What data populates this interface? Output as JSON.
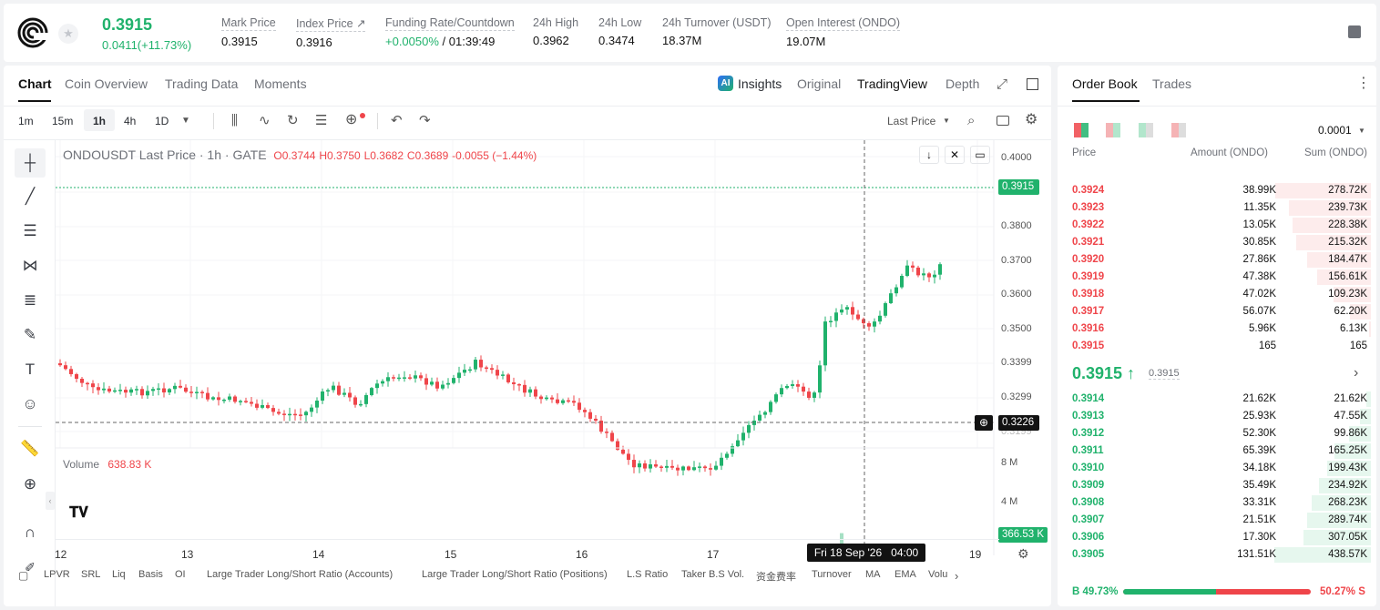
{
  "header": {
    "price": "0.3915",
    "change": "0.0411(+11.73%)",
    "stats": [
      {
        "label": "Mark Price",
        "value": "0.3915"
      },
      {
        "label": "Index Price ↗",
        "value": "0.3916"
      },
      {
        "label": "Funding Rate/Countdown",
        "value_up": "+0.0050%",
        "value": "/ 01:39:49"
      },
      {
        "label": "24h High",
        "value": "0.3962"
      },
      {
        "label": "24h Low",
        "value": "0.3474"
      },
      {
        "label": "24h Turnover (USDT)",
        "value": "18.37M"
      },
      {
        "label": "Open Interest (ONDO)",
        "value": "19.07M"
      }
    ]
  },
  "chart_tabs": [
    "Chart",
    "Coin Overview",
    "Trading Data",
    "Moments"
  ],
  "view_tabs": {
    "insights": "Insights",
    "original": "Original",
    "tradingview": "TradingView",
    "depth": "Depth"
  },
  "intervals": [
    "1m",
    "15m",
    "1h",
    "4h",
    "1D"
  ],
  "price_type": "Last Price",
  "legend": {
    "symbol": "ONDOUSDT Last Price · 1h · GATE",
    "o": "O0.3744",
    "h": "H0.3750",
    "l": "L0.3682",
    "c": "C0.3689",
    "chg": "-0.0055 (−1.44%)"
  },
  "volume_label": "Volume",
  "volume_value": "638.83 K",
  "y_ticks": [
    "0.4000",
    "0.3800",
    "0.3700",
    "0.3600",
    "0.3500",
    "0.3399",
    "0.3299"
  ],
  "y_tick_partial": [
    "0.3899",
    "0.3199"
  ],
  "price_tag": "0.3915",
  "cross_tag": "0.3226",
  "vol_ticks": [
    "8 M",
    "4 M"
  ],
  "vol_tag": "366.53 K",
  "x_ticks": [
    "12",
    "13",
    "14",
    "15",
    "16",
    "17",
    "19"
  ],
  "x_cross": "Fri 18 Sep '26   04:00",
  "indicators": [
    "LPVR",
    "SRL",
    "Liq",
    "Basis",
    "OI",
    "Large Trader Long/Short Ratio (Accounts)",
    "Large Trader Long/Short Ratio (Positions)",
    "L.S Ratio",
    "Taker B.S Vol.",
    "资金费率",
    "Turnover",
    "MA",
    "EMA",
    "Volu"
  ],
  "orderbook": {
    "tabs": [
      "Order Book",
      "Trades"
    ],
    "precision": "0.0001",
    "headers": [
      "Price",
      "Amount (ONDO)",
      "Sum (ONDO)"
    ],
    "asks": [
      [
        "0.3924",
        "38.99K",
        "278.72K",
        0.99
      ],
      [
        "0.3923",
        "11.35K",
        "239.73K",
        0.85
      ],
      [
        "0.3922",
        "13.05K",
        "228.38K",
        0.81
      ],
      [
        "0.3921",
        "30.85K",
        "215.32K",
        0.77
      ],
      [
        "0.3920",
        "27.86K",
        "184.47K",
        0.66
      ],
      [
        "0.3919",
        "47.38K",
        "156.61K",
        0.56
      ],
      [
        "0.3918",
        "47.02K",
        "109.23K",
        0.39
      ],
      [
        "0.3917",
        "56.07K",
        "62.20K",
        0.22
      ],
      [
        "0.3916",
        "5.96K",
        "6.13K",
        0.02
      ],
      [
        "0.3915",
        "165",
        "165",
        0.0
      ]
    ],
    "mid_price": "0.3915 ↑",
    "mid_mark": "0.3915",
    "bids": [
      [
        "0.3914",
        "21.62K",
        "21.62K",
        0.05
      ],
      [
        "0.3913",
        "25.93K",
        "47.55K",
        0.11
      ],
      [
        "0.3912",
        "52.30K",
        "99.86K",
        0.23
      ],
      [
        "0.3911",
        "65.39K",
        "165.25K",
        0.38
      ],
      [
        "0.3910",
        "34.18K",
        "199.43K",
        0.45
      ],
      [
        "0.3909",
        "35.49K",
        "234.92K",
        0.54
      ],
      [
        "0.3908",
        "33.31K",
        "268.23K",
        0.61
      ],
      [
        "0.3907",
        "21.51K",
        "289.74K",
        0.66
      ],
      [
        "0.3906",
        "17.30K",
        "307.05K",
        0.7
      ],
      [
        "0.3905",
        "131.51K",
        "438.57K",
        1.0
      ]
    ],
    "buy_ratio": "B 49.73%",
    "sell_ratio": "50.27% S",
    "buy_pct": 49.73
  },
  "colors": {
    "up": "#20b26c",
    "down": "#ef454a"
  }
}
